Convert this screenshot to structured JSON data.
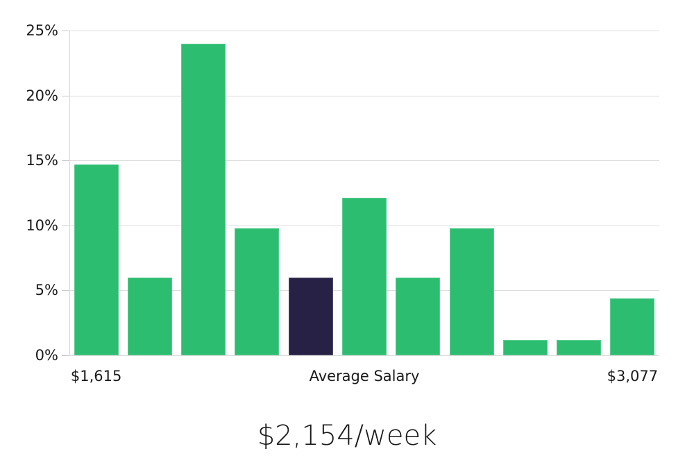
{
  "chart_data": {
    "type": "bar",
    "title": "$2,154/week",
    "xlabel": "Average Salary",
    "ylabel": "",
    "ylim": [
      0,
      25
    ],
    "y_tick_labels": [
      "0%",
      "5%",
      "10%",
      "15%",
      "20%",
      "25%"
    ],
    "x_tick_labels": {
      "first": "$1,615",
      "last": "$3,077"
    },
    "values": [
      14.7,
      6.0,
      24.0,
      9.8,
      6.0,
      12.1,
      6.0,
      9.8,
      1.2,
      1.2,
      4.4
    ],
    "values_unit": "%",
    "highlight_index": 4,
    "grid": true,
    "legend": false,
    "colors": {
      "bar": "#2dbd71",
      "highlight_bar": "#262145",
      "gridline": "#dcdcdc",
      "tick": "#c9c9c9",
      "axis_line": "#d6d6d6",
      "text": "#1a1a1a"
    }
  }
}
